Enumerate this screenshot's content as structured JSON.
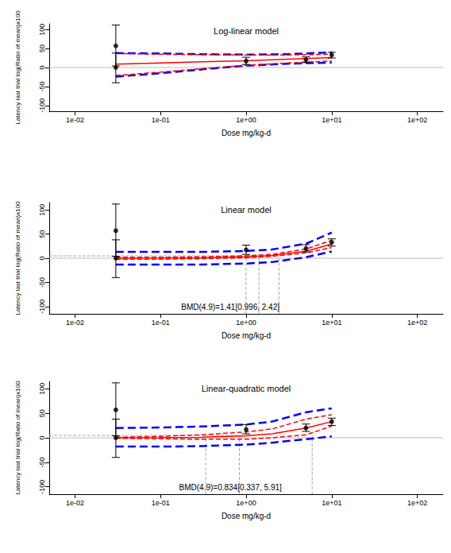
{
  "chart_data": [
    {
      "type": "line",
      "title": "Log-linear model",
      "x_label": "Dose mg/kg-d",
      "y_label": "Latency last trial log(Ratio of mean)x100",
      "log": "x",
      "grid": false,
      "xlim": [
        0.005,
        200
      ],
      "ylim": [
        -115,
        115
      ],
      "xticks": [
        {
          "value": 0.01,
          "label": "1e-02"
        },
        {
          "value": 0.1,
          "label": "1e-01"
        },
        {
          "value": 1,
          "label": "1e+00"
        },
        {
          "value": 10,
          "label": "1e+01"
        },
        {
          "value": 100,
          "label": "1e+02"
        }
      ],
      "yticks": [
        -100,
        -50,
        0,
        50,
        100
      ],
      "reference_y": 0,
      "series": [
        {
          "type": "line",
          "color": "#0000ff",
          "line_style": "dashed",
          "x": [
            0.03,
            0.1,
            0.3,
            1,
            3,
            10
          ],
          "values": [
            38,
            37,
            35,
            34,
            35,
            40
          ]
        },
        {
          "type": "line",
          "color": "#0000ff",
          "line_style": "dashed",
          "x": [
            0.03,
            0.1,
            0.3,
            1,
            3,
            10
          ],
          "values": [
            -24,
            -15,
            -5,
            5,
            10,
            13
          ]
        },
        {
          "type": "line",
          "color": "#ff0000",
          "line_style": "dashed",
          "x": [
            0.03,
            0.1,
            0.3,
            1,
            3,
            10
          ],
          "values": [
            37,
            35,
            34,
            33,
            33,
            35
          ]
        },
        {
          "type": "line",
          "color": "#ff0000",
          "line_style": "dashed",
          "x": [
            0.03,
            0.1,
            0.3,
            1,
            3,
            10
          ],
          "values": [
            -21,
            -12,
            -3,
            6,
            12,
            17
          ]
        },
        {
          "type": "line",
          "color": "#ff0000",
          "line_style": "solid",
          "x": [
            0.03,
            0.1,
            0.3,
            1,
            3,
            10
          ],
          "values": [
            9,
            12,
            15,
            18,
            22,
            26
          ]
        },
        {
          "type": "scatter",
          "color": "#000000",
          "marker": "circle",
          "x": [
            0.03,
            0.03,
            1,
            5,
            10
          ],
          "values": [
            0,
            57,
            17,
            20,
            33
          ],
          "lower": [
            -40,
            4,
            8,
            13,
            25
          ],
          "upper": [
            38,
            112,
            27,
            28,
            40
          ]
        }
      ]
    },
    {
      "type": "line",
      "title": "Linear model",
      "x_label": "Dose mg/kg-d",
      "y_label": "Latency last trial log(Ratio of mean)x100",
      "log": "x",
      "grid": false,
      "xlim": [
        0.005,
        200
      ],
      "ylim": [
        -115,
        115
      ],
      "xticks": [
        {
          "value": 0.01,
          "label": "1e-02"
        },
        {
          "value": 0.1,
          "label": "1e-01"
        },
        {
          "value": 1,
          "label": "1e+00"
        },
        {
          "value": 10,
          "label": "1e+01"
        },
        {
          "value": 100,
          "label": "1e+02"
        }
      ],
      "yticks": [
        -100,
        -50,
        0,
        50,
        100
      ],
      "reference_y": 0,
      "annotation": {
        "text": "BMD(4.9)=1.41[0.996, 2.42]",
        "bmr": 4.9,
        "bmd": 1.41,
        "lower": 0.996,
        "upper": 2.42
      },
      "series": [
        {
          "type": "line",
          "color": "#0000ff",
          "line_style": "dashed",
          "x": [
            0.03,
            0.1,
            0.3,
            1,
            2,
            5,
            10
          ],
          "values": [
            13,
            13,
            13,
            15,
            18,
            30,
            53
          ]
        },
        {
          "type": "line",
          "color": "#0000ff",
          "line_style": "dashed",
          "x": [
            0.03,
            0.1,
            0.3,
            1,
            2,
            5,
            10
          ],
          "values": [
            -13,
            -13,
            -13,
            -11,
            -8,
            2,
            14
          ]
        },
        {
          "type": "line",
          "color": "#ff0000",
          "line_style": "dashed",
          "x": [
            0.03,
            0.1,
            0.3,
            1,
            2,
            5,
            10
          ],
          "values": [
            2,
            2,
            3,
            5,
            8,
            19,
            37
          ]
        },
        {
          "type": "line",
          "color": "#ff0000",
          "line_style": "dashed",
          "x": [
            0.03,
            0.1,
            0.3,
            1,
            2,
            5,
            10
          ],
          "values": [
            -2,
            -2,
            -1,
            1,
            4,
            11,
            22
          ]
        },
        {
          "type": "line",
          "color": "#ff0000",
          "line_style": "solid",
          "x": [
            0.03,
            0.1,
            0.3,
            1,
            2,
            5,
            10
          ],
          "values": [
            0.1,
            0.3,
            0.9,
            2.9,
            5.8,
            14.5,
            29
          ]
        },
        {
          "type": "scatter",
          "color": "#000000",
          "marker": "circle",
          "x": [
            0.03,
            0.03,
            1,
            5,
            10
          ],
          "values": [
            0,
            57,
            17,
            20,
            33
          ],
          "lower": [
            -40,
            4,
            8,
            13,
            25
          ],
          "upper": [
            38,
            112,
            27,
            28,
            40
          ]
        }
      ]
    },
    {
      "type": "line",
      "title": "Linear-quadratic model",
      "x_label": "Dose mg/kg-d",
      "y_label": "Latency last trial log(Ratio of mean)x100",
      "log": "x",
      "grid": false,
      "xlim": [
        0.005,
        200
      ],
      "ylim": [
        -115,
        115
      ],
      "xticks": [
        {
          "value": 0.01,
          "label": "1e-02"
        },
        {
          "value": 0.1,
          "label": "1e-01"
        },
        {
          "value": 1,
          "label": "1e+00"
        },
        {
          "value": 10,
          "label": "1e+01"
        },
        {
          "value": 100,
          "label": "1e+02"
        }
      ],
      "yticks": [
        -100,
        -50,
        0,
        50,
        100
      ],
      "reference_y": 0,
      "annotation": {
        "text": "BMD(4.9)=0.834[0.337, 5.91]",
        "bmr": 4.9,
        "bmd": 0.834,
        "lower": 0.337,
        "upper": 5.91
      },
      "series": [
        {
          "type": "line",
          "color": "#0000ff",
          "line_style": "dashed",
          "x": [
            0.03,
            0.1,
            0.3,
            1,
            2,
            5,
            10
          ],
          "values": [
            20,
            21,
            23,
            27,
            33,
            52,
            60
          ]
        },
        {
          "type": "line",
          "color": "#0000ff",
          "line_style": "dashed",
          "x": [
            0.03,
            0.1,
            0.3,
            1,
            2,
            5,
            10
          ],
          "values": [
            -18,
            -18,
            -17,
            -14,
            -10,
            -3,
            3
          ]
        },
        {
          "type": "line",
          "color": "#ff0000",
          "line_style": "dashed",
          "x": [
            0.03,
            0.1,
            0.3,
            1,
            2,
            5,
            10
          ],
          "values": [
            1,
            3,
            6,
            12,
            18,
            38,
            47
          ]
        },
        {
          "type": "line",
          "color": "#ff0000",
          "line_style": "dashed",
          "x": [
            0.03,
            0.1,
            0.3,
            1,
            2,
            5,
            10
          ],
          "values": [
            -1,
            -2,
            -3,
            -3,
            0,
            6,
            24
          ]
        },
        {
          "type": "line",
          "color": "#ff0000",
          "line_style": "solid",
          "x": [
            0.03,
            0.1,
            0.3,
            1,
            2,
            5,
            10
          ],
          "values": [
            0,
            0.3,
            1,
            4,
            8,
            20,
            33
          ]
        },
        {
          "type": "scatter",
          "color": "#000000",
          "marker": "circle",
          "x": [
            0.03,
            0.03,
            1,
            5,
            10
          ],
          "values": [
            0,
            57,
            17,
            20,
            33
          ],
          "lower": [
            -40,
            4,
            8,
            13,
            25
          ],
          "upper": [
            38,
            112,
            27,
            28,
            40
          ]
        }
      ]
    }
  ]
}
